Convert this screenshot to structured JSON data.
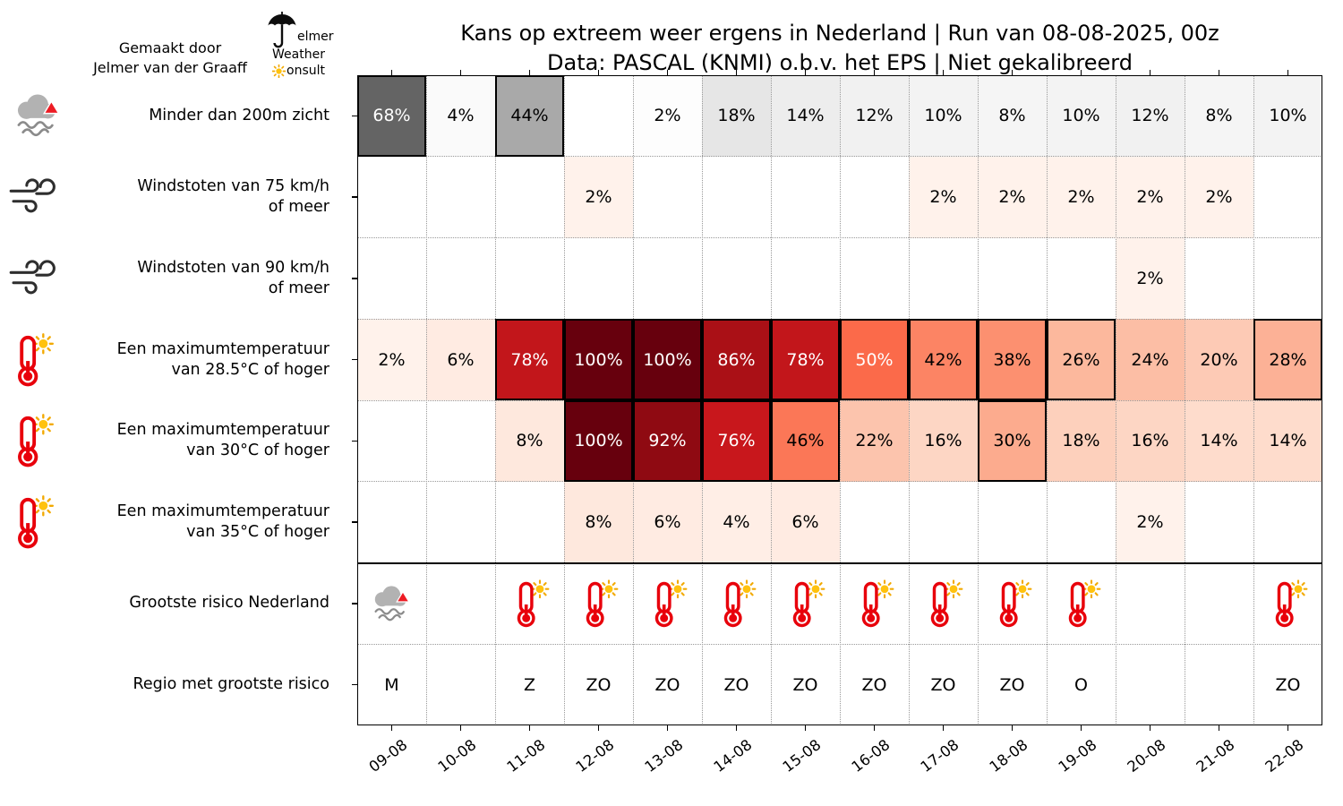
{
  "header": {
    "credit_line1": "Gemaakt door",
    "credit_line2": "Jelmer van der Graaff",
    "logo": {
      "line1": "elmer",
      "line2": "Weather",
      "line3": "onsult"
    },
    "title_line1": "Kans op extreem weer ergens in Nederland | Run van 08-08-2025, 00z",
    "title_line2": "Data: PASCAL (KNMI) o.b.v. het EPS | Niet gekalibreerd"
  },
  "chart_data": {
    "type": "heatmap",
    "value_suffix": "%",
    "border_min": 25,
    "white_text_min": 50,
    "columns": [
      "09-08",
      "10-08",
      "11-08",
      "12-08",
      "13-08",
      "14-08",
      "15-08",
      "16-08",
      "17-08",
      "18-08",
      "19-08",
      "20-08",
      "21-08",
      "22-08"
    ],
    "rows": [
      {
        "label_lines": [
          "Minder dan 200m zicht"
        ],
        "icon": "fog",
        "colormap": "greys",
        "values": [
          68,
          4,
          44,
          null,
          2,
          18,
          14,
          12,
          10,
          8,
          10,
          12,
          8,
          10
        ]
      },
      {
        "label_lines": [
          "Windstoten van 75 km/h",
          "of meer"
        ],
        "icon": "wind",
        "colormap": "reds",
        "values": [
          null,
          null,
          null,
          2,
          null,
          null,
          null,
          null,
          2,
          2,
          2,
          2,
          2,
          null
        ]
      },
      {
        "label_lines": [
          "Windstoten van 90 km/h",
          "of meer"
        ],
        "icon": "wind",
        "colormap": "reds",
        "values": [
          null,
          null,
          null,
          null,
          null,
          null,
          null,
          null,
          null,
          null,
          null,
          2,
          null,
          null
        ]
      },
      {
        "label_lines": [
          "Een maximumtemperatuur",
          "van 28.5°C of hoger"
        ],
        "icon": "thermo",
        "colormap": "reds",
        "values": [
          2,
          6,
          78,
          100,
          100,
          86,
          78,
          50,
          42,
          38,
          26,
          24,
          20,
          28
        ]
      },
      {
        "label_lines": [
          "Een maximumtemperatuur",
          "van 30°C of hoger"
        ],
        "icon": "thermo",
        "colormap": "reds",
        "values": [
          null,
          null,
          8,
          100,
          92,
          76,
          46,
          22,
          16,
          30,
          18,
          16,
          14,
          14
        ]
      },
      {
        "label_lines": [
          "Een maximumtemperatuur",
          "van 35°C of hoger"
        ],
        "icon": "thermo",
        "colormap": "reds",
        "values": [
          null,
          null,
          null,
          8,
          6,
          4,
          6,
          null,
          null,
          null,
          null,
          2,
          null,
          null
        ]
      }
    ],
    "risk_icon_row": {
      "label": "Grootste risico Nederland",
      "icons": [
        "fog",
        null,
        "thermo",
        "thermo",
        "thermo",
        "thermo",
        "thermo",
        "thermo",
        "thermo",
        "thermo",
        "thermo",
        null,
        null,
        "thermo"
      ]
    },
    "region_row": {
      "label": "Regio met grootste risico",
      "values": [
        "M",
        "",
        "Z",
        "ZO",
        "ZO",
        "ZO",
        "ZO",
        "ZO",
        "ZO",
        "ZO",
        "O",
        "",
        "",
        "ZO"
      ]
    },
    "colormaps": {
      "greys": [
        "#ffffff",
        "#f0f0f0",
        "#d9d9d9",
        "#bdbdbd",
        "#969696",
        "#737373",
        "#525252",
        "#252525",
        "#000000"
      ],
      "reds": [
        "#fff5f0",
        "#fee0d2",
        "#fcbba1",
        "#fc9272",
        "#fb6a4a",
        "#ef3b2c",
        "#cb181d",
        "#a50f15",
        "#67000d"
      ]
    },
    "icon_colors": {
      "thermometer_red": "#e8000b",
      "sun_fill": "#FFC20E",
      "sun_rays": "#F2A900",
      "cloud_gray": "#b2b2b2",
      "warning_red": "#ed1c24",
      "wind_stroke": "#2e2e2e"
    }
  }
}
